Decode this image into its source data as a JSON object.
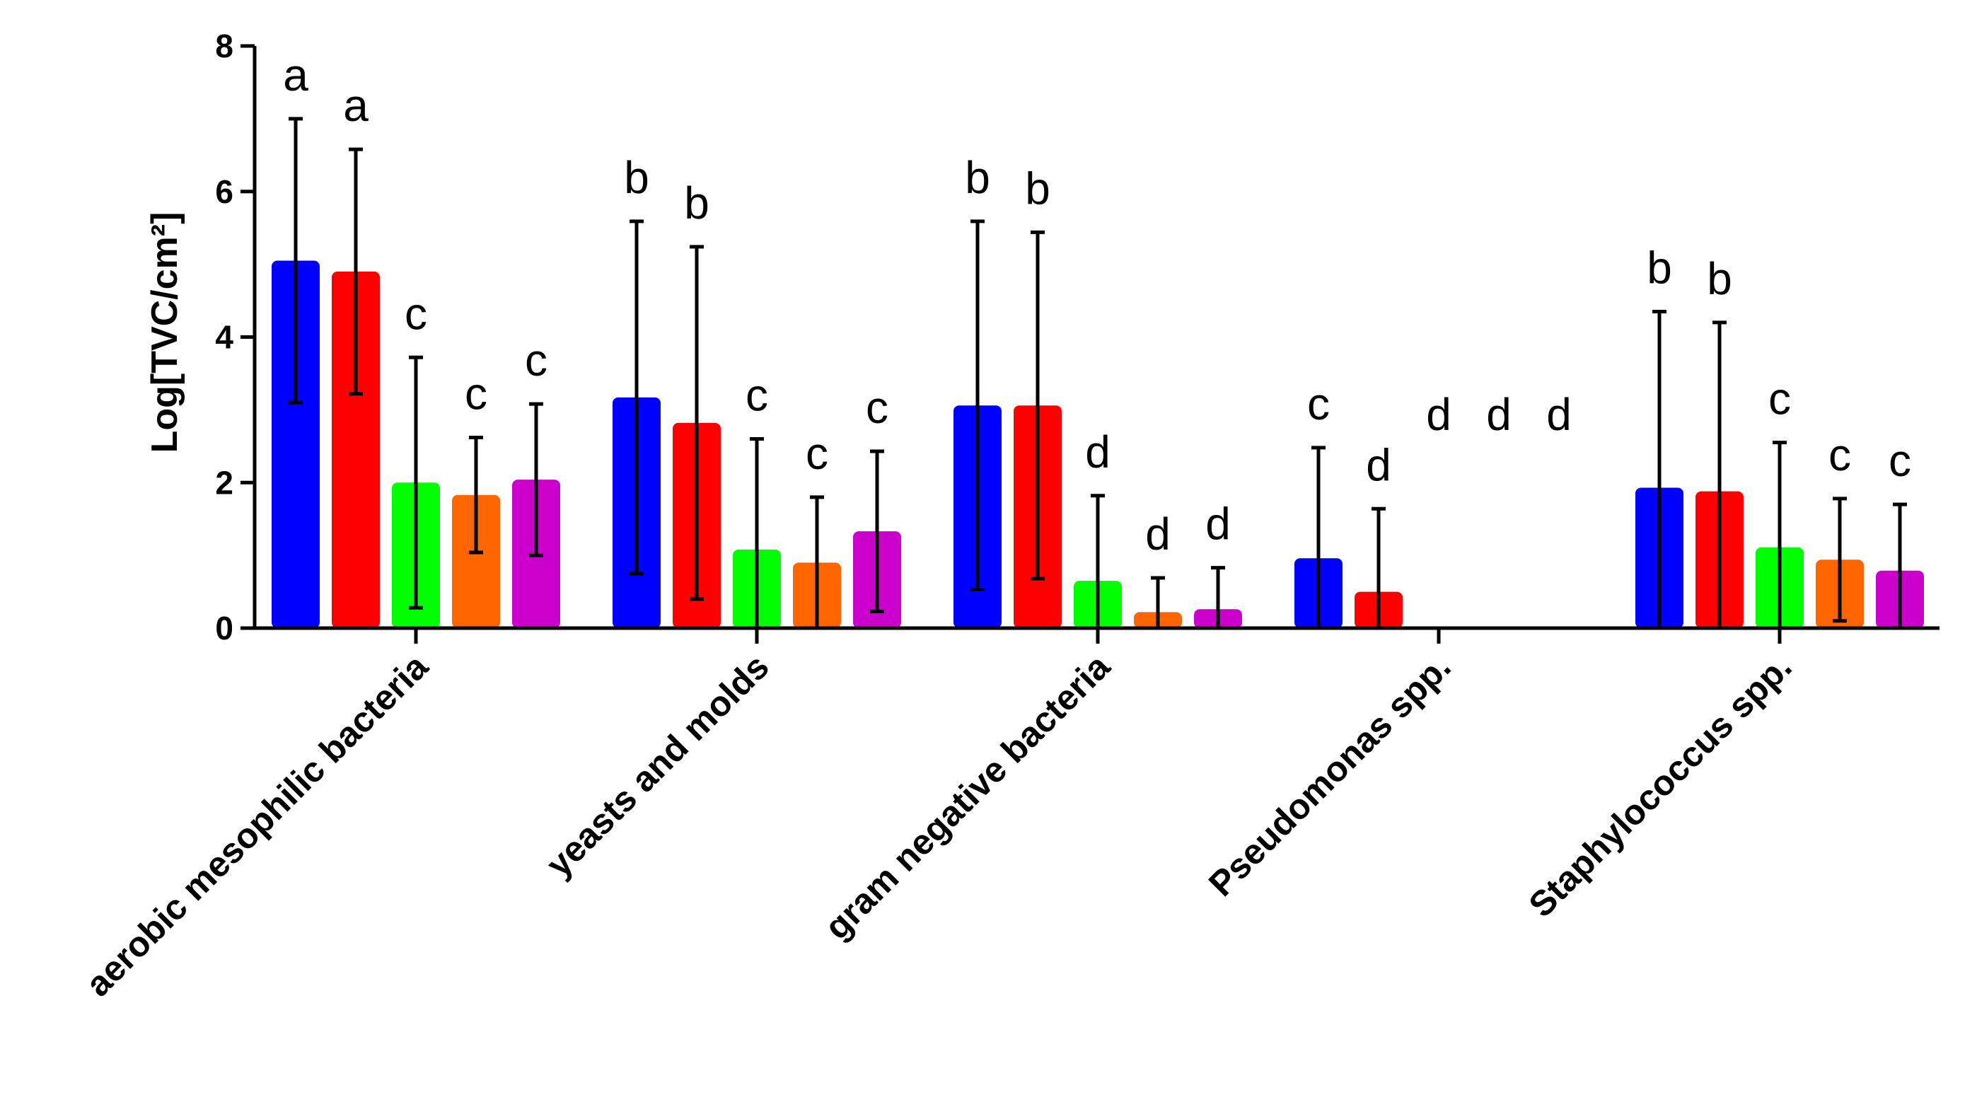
{
  "chart_data": {
    "type": "bar",
    "title": "",
    "xlabel": "",
    "ylabel": "Log[TVC/cm²]",
    "ylim": [
      0,
      8
    ],
    "yticks": [
      "0",
      "2",
      "4",
      "6",
      "8"
    ],
    "grid": false,
    "legend": "none",
    "categories": [
      "aerobic mesophilic bacteria",
      "yeasts and molds",
      "gram negative bacteria",
      "Pseudomonas spp.",
      "Staphylococcus spp."
    ],
    "series": [
      {
        "name": "blue",
        "color": "#0000ff",
        "values": [
          5.05,
          3.17,
          3.06,
          0.96,
          1.93
        ],
        "errors": [
          1.95,
          2.42,
          2.53,
          1.52,
          2.42
        ],
        "letters": [
          "a",
          "b",
          "b",
          "c",
          "b"
        ]
      },
      {
        "name": "red",
        "color": "#ff0000",
        "values": [
          4.9,
          2.82,
          3.06,
          0.5,
          1.88
        ],
        "errors": [
          1.68,
          2.42,
          2.38,
          1.14,
          2.32
        ],
        "letters": [
          "a",
          "b",
          "b",
          "d",
          "b"
        ]
      },
      {
        "name": "green",
        "color": "#00ff00",
        "values": [
          2.0,
          1.08,
          0.65,
          0.0,
          1.11
        ],
        "errors": [
          1.72,
          1.52,
          1.17,
          0.0,
          1.44
        ],
        "letters": [
          "c",
          "c",
          "d",
          "d",
          "c"
        ]
      },
      {
        "name": "orange",
        "color": "#ff6600",
        "values": [
          1.83,
          0.9,
          0.22,
          0.0,
          0.94
        ],
        "errors": [
          0.79,
          0.9,
          0.47,
          0.0,
          0.84
        ],
        "letters": [
          "c",
          "c",
          "d",
          "d",
          "c"
        ]
      },
      {
        "name": "magenta",
        "color": "#cc00cc",
        "values": [
          2.04,
          1.33,
          0.26,
          0.0,
          0.79
        ],
        "errors": [
          1.04,
          1.1,
          0.57,
          0.0,
          0.91
        ],
        "letters": [
          "c",
          "c",
          "d",
          "d",
          "c"
        ]
      }
    ]
  }
}
